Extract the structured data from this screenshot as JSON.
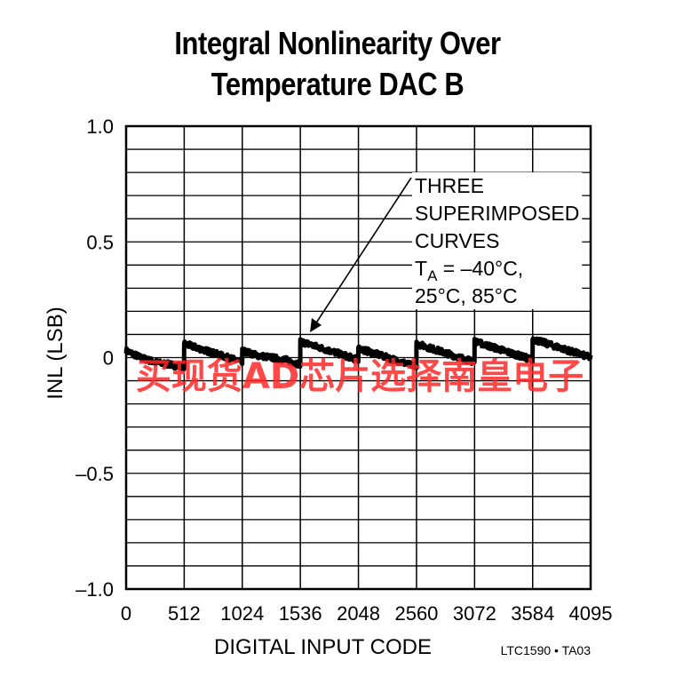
{
  "title": {
    "line1": "Integral Nonlinearity Over",
    "line2": "Temperature DAC B"
  },
  "chart_data": {
    "type": "line",
    "title": "Integral Nonlinearity Over Temperature DAC B",
    "xlabel": "DIGITAL INPUT CODE",
    "ylabel": "INL (LSB)",
    "xlim": [
      0,
      4095
    ],
    "ylim": [
      -1.0,
      1.0
    ],
    "x_ticks": [
      0,
      512,
      1024,
      1536,
      2048,
      2560,
      3072,
      3584,
      4095
    ],
    "y_ticks": [
      {
        "value": 1.0,
        "label": "1.0"
      },
      {
        "value": 0.5,
        "label": "0.5"
      },
      {
        "value": 0.0,
        "label": "0"
      },
      {
        "value": -0.5,
        "label": "–0.5"
      },
      {
        "value": -1.0,
        "label": "–1.0"
      }
    ],
    "grid": true,
    "series": [
      {
        "x": [
          0,
          128,
          256,
          384,
          511,
          512,
          640,
          768,
          896,
          1023,
          1024,
          1152,
          1280,
          1408,
          1535,
          1536,
          1664,
          1792,
          1920,
          2047,
          2048,
          2176,
          2304,
          2432,
          2559,
          2560,
          2688,
          2816,
          2944,
          3071,
          3072,
          3200,
          3328,
          3456,
          3583,
          3584,
          3712,
          3840,
          3968,
          4095
        ],
        "y": [
          0.03,
          0.0,
          -0.02,
          -0.03,
          -0.04,
          0.06,
          0.04,
          0.02,
          0.0,
          -0.02,
          0.03,
          0.01,
          0.0,
          -0.01,
          -0.03,
          0.07,
          0.05,
          0.03,
          0.01,
          -0.01,
          0.04,
          0.02,
          0.0,
          -0.02,
          -0.04,
          0.06,
          0.04,
          0.02,
          0.0,
          -0.02,
          0.07,
          0.05,
          0.03,
          0.01,
          -0.01,
          0.08,
          0.06,
          0.04,
          0.02,
          0.0
        ]
      }
    ],
    "annotation": {
      "lines": [
        "THREE",
        "SUPERIMPOSED",
        "CURVES",
        "T_A = –40°C,",
        "25°C, 85°C"
      ],
      "sub_main": "T",
      "sub_sub": "A",
      "sub_rest": " = –40°C,"
    },
    "part_code": "LTC1590 • TA03"
  },
  "watermark": "买现货AD芯片选择南皇电子"
}
